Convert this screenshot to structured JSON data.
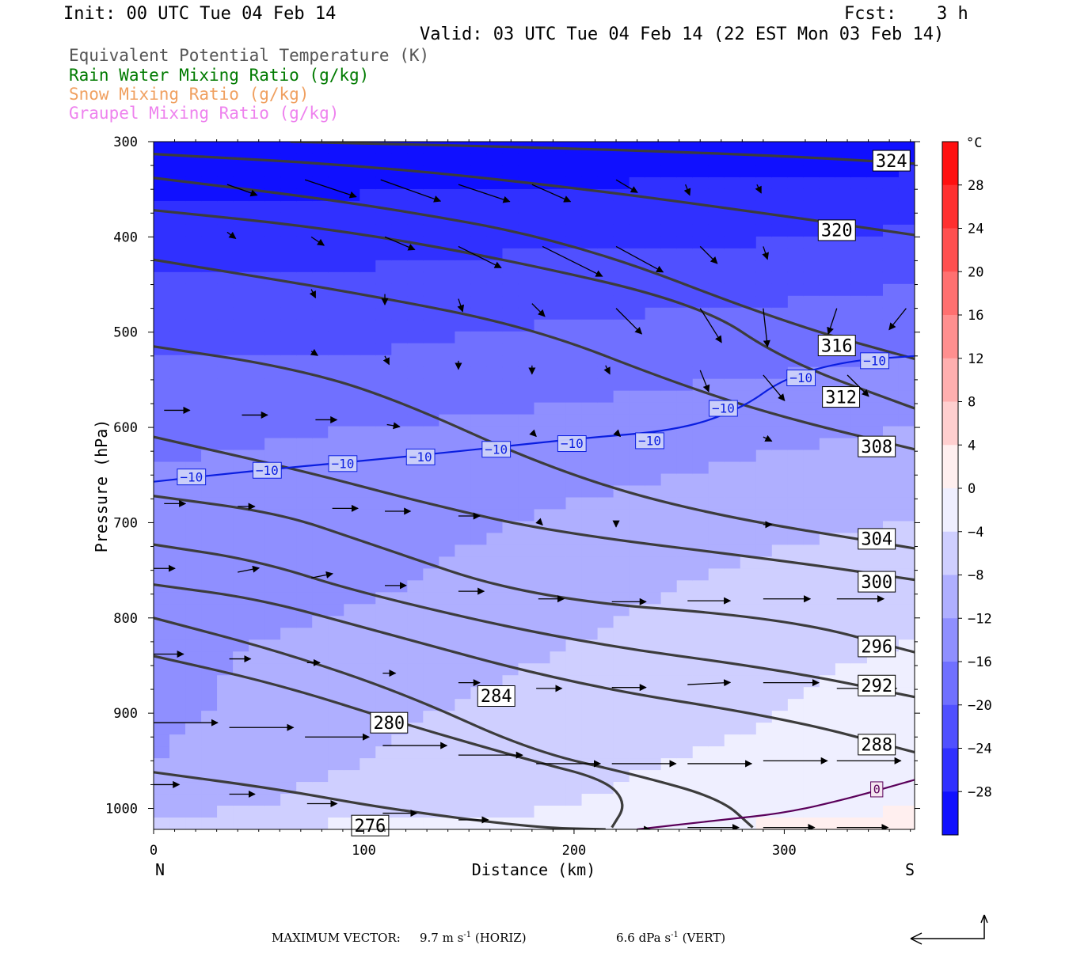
{
  "header": {
    "init": "Init: 00 UTC Tue 04 Feb 14",
    "fcst_label": "Fcst:",
    "fcst_value": "3 h",
    "valid": "Valid: 03 UTC Tue 04 Feb 14 (22 EST Mon 03 Feb 14)"
  },
  "legend": [
    {
      "text": "Equivalent Potential Temperature (K)",
      "color": "#555555"
    },
    {
      "text": "Rain Water Mixing Ratio (g/kg)",
      "color": "#007a00"
    },
    {
      "text": "Snow Mixing Ratio (g/kg)",
      "color": "#f0a060"
    },
    {
      "text": "Graupel Mixing Ratio (g/kg)",
      "color": "#ee82ee"
    }
  ],
  "chart_data": {
    "type": "cross-section",
    "xlabel": "Distance (km)",
    "ylabel": "Pressure (hPa)",
    "xlim": [
      0,
      362
    ],
    "ylim": [
      1022,
      300
    ],
    "x_ticks": [
      "0",
      "100",
      "200",
      "300"
    ],
    "y_ticks": [
      "300",
      "400",
      "500",
      "600",
      "700",
      "800",
      "900",
      "1000"
    ],
    "left_end_label": "N",
    "right_end_label": "S",
    "colorbar": {
      "unit": "°C",
      "labels": [
        "28",
        "24",
        "20",
        "16",
        "12",
        "8",
        "4",
        "0",
        "−4",
        "−8",
        "−12",
        "−16",
        "−20",
        "−24",
        "−28"
      ]
    },
    "theta_e_contours": [
      {
        "label": "324",
        "points": [
          [
            65,
            300
          ],
          [
            200,
            307
          ],
          [
            300,
            315
          ],
          [
            362,
            323
          ]
        ],
        "label_at": [
          351,
          320
        ]
      },
      {
        "label": "320",
        "points": [
          [
            0,
            313
          ],
          [
            100,
            325
          ],
          [
            200,
            348
          ],
          [
            300,
            378
          ],
          [
            362,
            398
          ]
        ],
        "label_at": [
          325,
          393
        ]
      },
      {
        "label": "316",
        "points": [
          [
            0,
            338
          ],
          [
            100,
            365
          ],
          [
            200,
            405
          ],
          [
            300,
            490
          ],
          [
            362,
            528
          ]
        ],
        "label_at": [
          325,
          514
        ]
      },
      {
        "label": "312",
        "points": [
          [
            0,
            372
          ],
          [
            80,
            390
          ],
          [
            160,
            420
          ],
          [
            260,
            470
          ],
          [
            300,
            530
          ],
          [
            362,
            580
          ]
        ],
        "label_at": [
          327,
          568
        ]
      },
      {
        "label": "308",
        "points": [
          [
            0,
            424
          ],
          [
            100,
            460
          ],
          [
            180,
            495
          ],
          [
            250,
            555
          ],
          [
            300,
            590
          ],
          [
            362,
            623
          ]
        ],
        "label_at": [
          344,
          620
        ]
      },
      {
        "label": "304",
        "points": [
          [
            0,
            515
          ],
          [
            60,
            535
          ],
          [
            110,
            565
          ],
          [
            190,
            645
          ],
          [
            260,
            690
          ],
          [
            362,
            727
          ]
        ],
        "label_at": [
          344,
          717
        ]
      },
      {
        "label": "300",
        "points": [
          [
            0,
            610
          ],
          [
            70,
            645
          ],
          [
            130,
            680
          ],
          [
            190,
            710
          ],
          [
            300,
            740
          ],
          [
            362,
            760
          ]
        ],
        "label_at": [
          344,
          762
        ]
      },
      {
        "label": "296",
        "points": [
          [
            0,
            672
          ],
          [
            60,
            690
          ],
          [
            100,
            720
          ],
          [
            180,
            780
          ],
          [
            300,
            800
          ],
          [
            362,
            836
          ]
        ],
        "label_at": [
          344,
          830
        ]
      },
      {
        "label": "292",
        "points": [
          [
            0,
            723
          ],
          [
            50,
            740
          ],
          [
            100,
            775
          ],
          [
            200,
            825
          ],
          [
            300,
            855
          ],
          [
            362,
            883
          ]
        ],
        "label_at": [
          344,
          871
        ]
      },
      {
        "label": "288",
        "points": [
          [
            0,
            765
          ],
          [
            50,
            780
          ],
          [
            100,
            810
          ],
          [
            200,
            870
          ],
          [
            300,
            905
          ],
          [
            362,
            941
          ]
        ],
        "label_at": [
          344,
          933
        ]
      },
      {
        "label": "284",
        "points": [
          [
            0,
            800
          ],
          [
            60,
            835
          ],
          [
            120,
            880
          ],
          [
            180,
            940
          ],
          [
            230,
            965
          ],
          [
            270,
            990
          ],
          [
            285,
            1020
          ]
        ],
        "label_at": [
          163,
          882
        ]
      },
      {
        "label": "280",
        "points": [
          [
            0,
            840
          ],
          [
            60,
            870
          ],
          [
            120,
            912
          ],
          [
            180,
            950
          ],
          [
            215,
            970
          ],
          [
            225,
            995
          ],
          [
            218,
            1020
          ]
        ],
        "label_at": [
          112,
          910
        ]
      },
      {
        "label": "276",
        "points": [
          [
            0,
            962
          ],
          [
            60,
            980
          ],
          [
            110,
            1000
          ],
          [
            180,
            1020
          ],
          [
            215,
            1022
          ]
        ],
        "label_at": [
          103,
          1018
        ]
      }
    ],
    "isotherm_minus10": {
      "label": "−10",
      "points": [
        [
          0,
          657
        ],
        [
          50,
          645
        ],
        [
          100,
          635
        ],
        [
          150,
          624
        ],
        [
          200,
          612
        ],
        [
          250,
          603
        ],
        [
          280,
          580
        ],
        [
          300,
          548
        ],
        [
          330,
          530
        ],
        [
          362,
          525
        ]
      ],
      "label_positions": [
        [
          18,
          652
        ],
        [
          54,
          645
        ],
        [
          90,
          638
        ],
        [
          127,
          631
        ],
        [
          163,
          623
        ],
        [
          199,
          617
        ],
        [
          236,
          614
        ],
        [
          271,
          580
        ],
        [
          308,
          548
        ],
        [
          343,
          530
        ]
      ]
    },
    "isotherm_zero": {
      "label": "0",
      "points": [
        [
          230,
          1022
        ],
        [
          270,
          1012
        ],
        [
          300,
          1005
        ],
        [
          330,
          990
        ],
        [
          362,
          970
        ]
      ],
      "label_at": [
        344,
        980
      ]
    },
    "temperature_shading_degC": [
      {
        "x": 0,
        "column": [
          -31,
          -27,
          -23,
          -20,
          -17,
          -15,
          -14,
          -13,
          -13,
          -12,
          -10,
          -3
        ]
      },
      {
        "x": 100,
        "column": [
          -31,
          -27,
          -23,
          -20,
          -16,
          -14,
          -13,
          -11,
          -9,
          -8,
          -6,
          -3
        ]
      },
      {
        "x": 200,
        "column": [
          -31,
          -26,
          -22,
          -18,
          -15,
          -12,
          -10,
          -8,
          -6,
          -5,
          -4,
          -2
        ]
      },
      {
        "x": 300,
        "column": [
          -30,
          -26,
          -21,
          -17,
          -13,
          -10,
          -7,
          -5,
          -4,
          -3,
          -1,
          1
        ]
      },
      {
        "x": 362,
        "column": [
          -30,
          -25,
          -20,
          -16,
          -12,
          -9,
          -6,
          -4,
          -2,
          -1,
          0,
          2
        ]
      }
    ],
    "shading_levels_hPa": [
      300,
      375,
      450,
      525,
      600,
      675,
      750,
      825,
      900,
      950,
      1000,
      1022
    ],
    "wind_vectors": [
      {
        "x": 35,
        "p": 345,
        "u": 14,
        "w": -5
      },
      {
        "x": 72,
        "p": 340,
        "u": 24,
        "w": -8
      },
      {
        "x": 108,
        "p": 340,
        "u": 28,
        "w": -10
      },
      {
        "x": 145,
        "p": 345,
        "u": 24,
        "w": -8
      },
      {
        "x": 180,
        "p": 345,
        "u": 18,
        "w": -8
      },
      {
        "x": 220,
        "p": 340,
        "u": 10,
        "w": -6
      },
      {
        "x": 253,
        "p": 345,
        "u": 2,
        "w": -5
      },
      {
        "x": 287,
        "p": 345,
        "u": 2,
        "w": -4
      },
      {
        "x": 35,
        "p": 395,
        "u": 4,
        "w": -3
      },
      {
        "x": 75,
        "p": 400,
        "u": 6,
        "w": -4
      },
      {
        "x": 110,
        "p": 400,
        "u": 14,
        "w": -6
      },
      {
        "x": 145,
        "p": 410,
        "u": 20,
        "w": -10
      },
      {
        "x": 185,
        "p": 410,
        "u": 28,
        "w": -14
      },
      {
        "x": 220,
        "p": 410,
        "u": 22,
        "w": -12
      },
      {
        "x": 260,
        "p": 410,
        "u": 8,
        "w": -8
      },
      {
        "x": 290,
        "p": 410,
        "u": 2,
        "w": -6
      },
      {
        "x": 75,
        "p": 455,
        "u": 2,
        "w": -4
      },
      {
        "x": 110,
        "p": 460,
        "u": 0,
        "w": -5
      },
      {
        "x": 145,
        "p": 465,
        "u": 2,
        "w": -6
      },
      {
        "x": 180,
        "p": 470,
        "u": 6,
        "w": -6
      },
      {
        "x": 220,
        "p": 475,
        "u": 12,
        "w": -12
      },
      {
        "x": 260,
        "p": 475,
        "u": 10,
        "w": -16
      },
      {
        "x": 290,
        "p": 475,
        "u": 2,
        "w": -18
      },
      {
        "x": 325,
        "p": 475,
        "u": -4,
        "w": -12
      },
      {
        "x": 358,
        "p": 475,
        "u": -8,
        "w": -10
      },
      {
        "x": 75,
        "p": 520,
        "u": 3,
        "w": -2
      },
      {
        "x": 110,
        "p": 525,
        "u": 2,
        "w": -4
      },
      {
        "x": 145,
        "p": 530,
        "u": 0,
        "w": -4
      },
      {
        "x": 180,
        "p": 535,
        "u": 0,
        "w": -4
      },
      {
        "x": 215,
        "p": 535,
        "u": 2,
        "w": -4
      },
      {
        "x": 260,
        "p": 540,
        "u": 4,
        "w": -10
      },
      {
        "x": 290,
        "p": 545,
        "u": 10,
        "w": -12
      },
      {
        "x": 330,
        "p": 545,
        "u": 10,
        "w": -10
      },
      {
        "x": 5,
        "p": 582,
        "u": 12,
        "w": 0
      },
      {
        "x": 42,
        "p": 587,
        "u": 12,
        "w": 0
      },
      {
        "x": 77,
        "p": 592,
        "u": 10,
        "w": 0
      },
      {
        "x": 111,
        "p": 597,
        "u": 6,
        "w": -1
      },
      {
        "x": 180,
        "p": 605,
        "u": 2,
        "w": -2
      },
      {
        "x": 220,
        "p": 605,
        "u": 2,
        "w": -2
      },
      {
        "x": 290,
        "p": 610,
        "u": 4,
        "w": -2
      },
      {
        "x": 5,
        "p": 680,
        "u": 10,
        "w": 0
      },
      {
        "x": 40,
        "p": 683,
        "u": 8,
        "w": 0
      },
      {
        "x": 85,
        "p": 685,
        "u": 12,
        "w": 0
      },
      {
        "x": 110,
        "p": 688,
        "u": 12,
        "w": 0
      },
      {
        "x": 145,
        "p": 693,
        "u": 10,
        "w": 0
      },
      {
        "x": 183,
        "p": 698,
        "u": 2,
        "w": -2
      },
      {
        "x": 220,
        "p": 700,
        "u": 0,
        "w": -2
      },
      {
        "x": 290,
        "p": 702,
        "u": 4,
        "w": 0
      },
      {
        "x": 0,
        "p": 748,
        "u": 10,
        "w": 0
      },
      {
        "x": 40,
        "p": 752,
        "u": 10,
        "w": 2
      },
      {
        "x": 75,
        "p": 758,
        "u": 10,
        "w": 2
      },
      {
        "x": 110,
        "p": 766,
        "u": 10,
        "w": 0
      },
      {
        "x": 145,
        "p": 772,
        "u": 12,
        "w": 0
      },
      {
        "x": 183,
        "p": 780,
        "u": 12,
        "w": 0
      },
      {
        "x": 218,
        "p": 783,
        "u": 16,
        "w": 0
      },
      {
        "x": 254,
        "p": 782,
        "u": 20,
        "w": 0
      },
      {
        "x": 290,
        "p": 780,
        "u": 22,
        "w": 0
      },
      {
        "x": 325,
        "p": 780,
        "u": 22,
        "w": 0
      },
      {
        "x": 0,
        "p": 838,
        "u": 14,
        "w": 0
      },
      {
        "x": 36,
        "p": 843,
        "u": 10,
        "w": 0
      },
      {
        "x": 73,
        "p": 847,
        "u": 6,
        "w": 0
      },
      {
        "x": 109,
        "p": 858,
        "u": 6,
        "w": 0
      },
      {
        "x": 145,
        "p": 868,
        "u": 10,
        "w": 0
      },
      {
        "x": 182,
        "p": 874,
        "u": 12,
        "w": 0
      },
      {
        "x": 218,
        "p": 873,
        "u": 16,
        "w": 0
      },
      {
        "x": 254,
        "p": 870,
        "u": 20,
        "w": 1
      },
      {
        "x": 290,
        "p": 868,
        "u": 26,
        "w": 0
      },
      {
        "x": 325,
        "p": 874,
        "u": 28,
        "w": 0
      },
      {
        "x": 0,
        "p": 910,
        "u": 30,
        "w": 0
      },
      {
        "x": 36,
        "p": 915,
        "u": 30,
        "w": 0
      },
      {
        "x": 72,
        "p": 925,
        "u": 30,
        "w": 0
      },
      {
        "x": 109,
        "p": 934,
        "u": 30,
        "w": 0
      },
      {
        "x": 145,
        "p": 944,
        "u": 30,
        "w": 0
      },
      {
        "x": 182,
        "p": 953,
        "u": 30,
        "w": 0
      },
      {
        "x": 218,
        "p": 953,
        "u": 30,
        "w": 0
      },
      {
        "x": 254,
        "p": 953,
        "u": 30,
        "w": 0
      },
      {
        "x": 290,
        "p": 950,
        "u": 30,
        "w": 0
      },
      {
        "x": 325,
        "p": 950,
        "u": 30,
        "w": 0
      },
      {
        "x": 0,
        "p": 975,
        "u": 12,
        "w": 0
      },
      {
        "x": 36,
        "p": 985,
        "u": 12,
        "w": 0
      },
      {
        "x": 73,
        "p": 995,
        "u": 14,
        "w": 0
      },
      {
        "x": 109,
        "p": 1005,
        "u": 16,
        "w": 0
      },
      {
        "x": 145,
        "p": 1012,
        "u": 14,
        "w": 0
      },
      {
        "x": 218,
        "p": 1022,
        "u": 18,
        "w": 0
      },
      {
        "x": 254,
        "p": 1020,
        "u": 24,
        "w": 0
      },
      {
        "x": 290,
        "p": 1020,
        "u": 24,
        "w": 0
      },
      {
        "x": 325,
        "p": 1020,
        "u": 24,
        "w": 0
      }
    ],
    "colors": {
      "theta_e": "#3c3c3c",
      "isotherm_minus10": "#0a1ee0",
      "isotherm_zero": "#5a005a",
      "vector": "#000000"
    }
  },
  "footer": {
    "label": "MAXIMUM VECTOR:",
    "horiz_value": "9.7 m s",
    "horiz_exp": "-1",
    "horiz_unit": "(HORIZ)",
    "vert_value": "6.6 dPa s",
    "vert_exp": "-1",
    "vert_unit": "(VERT)"
  }
}
